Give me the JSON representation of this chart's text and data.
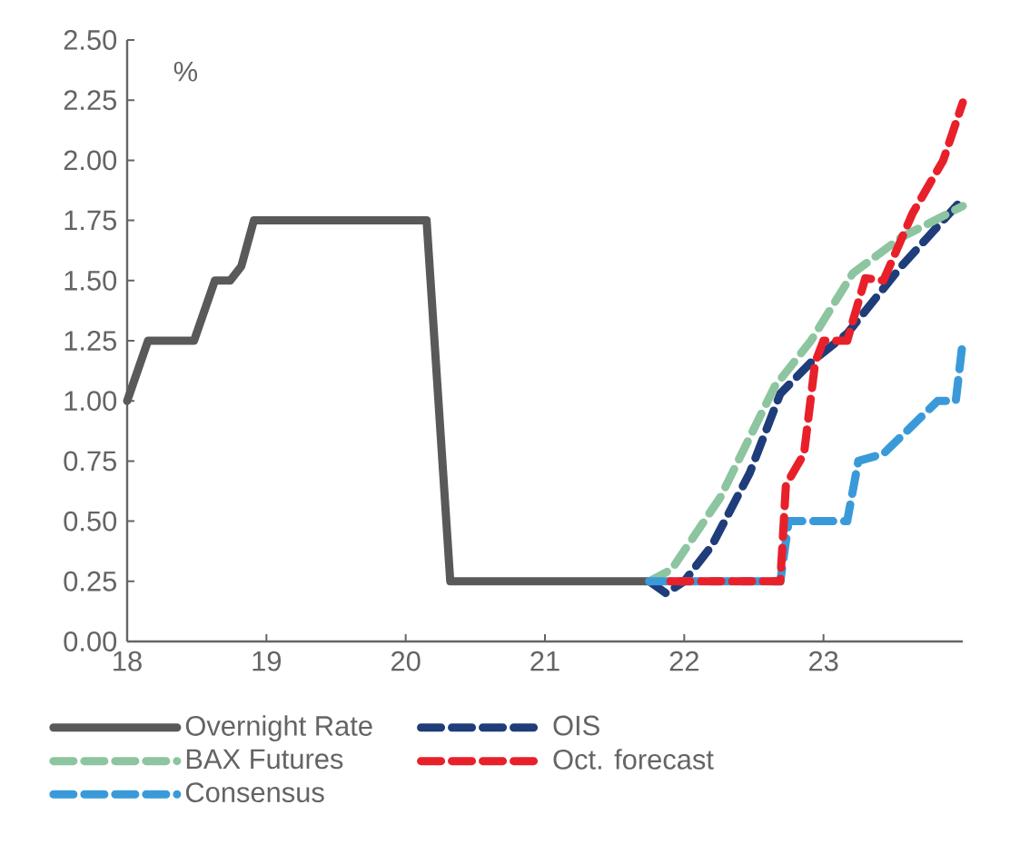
{
  "chart_data": {
    "type": "line",
    "ylabel": "%",
    "legend": "bottom",
    "xlim": [
      18,
      24
    ],
    "xticks": [
      18,
      19,
      20,
      21,
      22,
      23
    ],
    "ylim": [
      0,
      2.5
    ],
    "yticks": [
      {
        "value": 0,
        "label": "0.00"
      },
      {
        "value": 0.25,
        "label": "0.25"
      },
      {
        "value": 0.5,
        "label": "0.50"
      },
      {
        "value": 0.75,
        "label": "0.75"
      },
      {
        "value": 1,
        "label": "1.00"
      },
      {
        "value": 1.25,
        "label": "1.25"
      },
      {
        "value": 1.5,
        "label": "1.50"
      },
      {
        "value": 1.75,
        "label": "1.75"
      },
      {
        "value": 2,
        "label": "2.00"
      },
      {
        "value": 2.25,
        "label": "2.25"
      },
      {
        "value": 2.5,
        "label": "2.50"
      }
    ],
    "series": [
      {
        "name": "Overnight Rate",
        "color": "#595959",
        "line_style": "solid",
        "x": [
          18.0,
          18.15,
          18.48,
          18.63,
          18.74,
          18.82,
          18.91,
          20.15,
          20.32,
          21.75
        ],
        "values": [
          1.0,
          1.25,
          1.25,
          1.5,
          1.5,
          1.56,
          1.75,
          1.75,
          0.25,
          0.25
        ]
      },
      {
        "name": "OIS",
        "color": "#1f3d7a",
        "line_style": "dashed",
        "x": [
          21.75,
          21.87,
          22.0,
          22.2,
          22.47,
          22.69,
          22.91,
          23.17,
          23.56,
          24.0
        ],
        "values": [
          0.25,
          0.2,
          0.25,
          0.4,
          0.7,
          1.03,
          1.16,
          1.28,
          1.56,
          1.84
        ]
      },
      {
        "name": "BAX Futures",
        "color": "#8cc5a0",
        "line_style": "dashed",
        "x": [
          21.75,
          21.91,
          22.26,
          22.65,
          22.91,
          23.21,
          23.56,
          24.0
        ],
        "values": [
          0.25,
          0.3,
          0.6,
          1.06,
          1.25,
          1.53,
          1.68,
          1.81
        ]
      },
      {
        "name": "Oct. forecast",
        "color": "#e8202a",
        "line_style": "dashed",
        "x": [
          21.9,
          22.69,
          22.73,
          22.86,
          22.94,
          23.0,
          23.17,
          23.3,
          23.43,
          23.64,
          23.86,
          24.0
        ],
        "values": [
          0.25,
          0.25,
          0.65,
          0.78,
          1.16,
          1.25,
          1.25,
          1.51,
          1.5,
          1.78,
          2.0,
          2.24
        ]
      },
      {
        "name": "Consensus",
        "color": "#3a9ad9",
        "line_style": "dashed",
        "x": [
          21.75,
          22.69,
          22.75,
          23.17,
          23.25,
          23.43,
          23.82,
          23.95,
          24.0
        ],
        "values": [
          0.25,
          0.25,
          0.5,
          0.5,
          0.75,
          0.78,
          1.0,
          1.0,
          1.25
        ]
      }
    ]
  }
}
